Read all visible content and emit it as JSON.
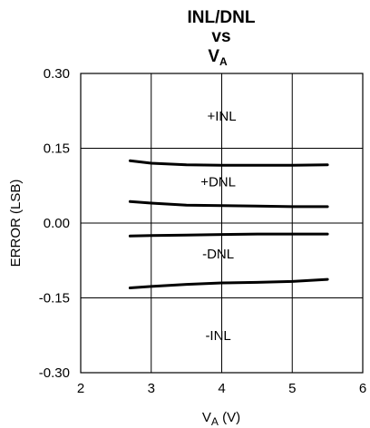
{
  "chart_data": {
    "type": "line",
    "title": [
      "INL/DNL",
      "vs",
      "V",
      "A"
    ],
    "xlabel": "V",
    "xlabel_sub": "A",
    "xlabel_unit": " (V)",
    "ylabel": "ERROR (LSB)",
    "xlim": [
      2,
      6
    ],
    "ylim": [
      -0.3,
      0.3
    ],
    "xticks": [
      2,
      3,
      4,
      5,
      6
    ],
    "xtick_labels": [
      "2",
      "3",
      "4",
      "5",
      "6"
    ],
    "yticks": [
      0.3,
      0.15,
      0.0,
      -0.15,
      -0.3
    ],
    "ytick_labels": [
      "0.30",
      "0.15",
      "0.00",
      "-0.15",
      "-0.30"
    ],
    "grid": true,
    "series": [
      {
        "name": "+INL",
        "x": [
          2.7,
          3.0,
          3.5,
          4.0,
          4.5,
          5.0,
          5.5
        ],
        "y": [
          0.125,
          0.12,
          0.117,
          0.116,
          0.116,
          0.116,
          0.117
        ]
      },
      {
        "name": "+DNL",
        "x": [
          2.7,
          3.0,
          3.5,
          4.0,
          4.5,
          5.0,
          5.5
        ],
        "y": [
          0.043,
          0.04,
          0.036,
          0.035,
          0.034,
          0.033,
          0.033
        ]
      },
      {
        "name": "-DNL",
        "x": [
          2.7,
          3.0,
          3.5,
          4.0,
          4.5,
          5.0,
          5.5
        ],
        "y": [
          -0.026,
          -0.025,
          -0.024,
          -0.023,
          -0.022,
          -0.022,
          -0.022
        ]
      },
      {
        "name": "-INL",
        "x": [
          2.7,
          3.0,
          3.5,
          4.0,
          4.5,
          5.0,
          5.5
        ],
        "y": [
          -0.13,
          -0.127,
          -0.123,
          -0.12,
          -0.119,
          -0.117,
          -0.113
        ]
      }
    ],
    "annotations": [
      {
        "text": "+INL",
        "x": 4.0,
        "y": 0.215
      },
      {
        "text": "+DNL",
        "x": 3.95,
        "y": 0.083
      },
      {
        "text": "-DNL",
        "x": 3.95,
        "y": -0.062
      },
      {
        "text": "-INL",
        "x": 3.95,
        "y": -0.225
      }
    ]
  }
}
